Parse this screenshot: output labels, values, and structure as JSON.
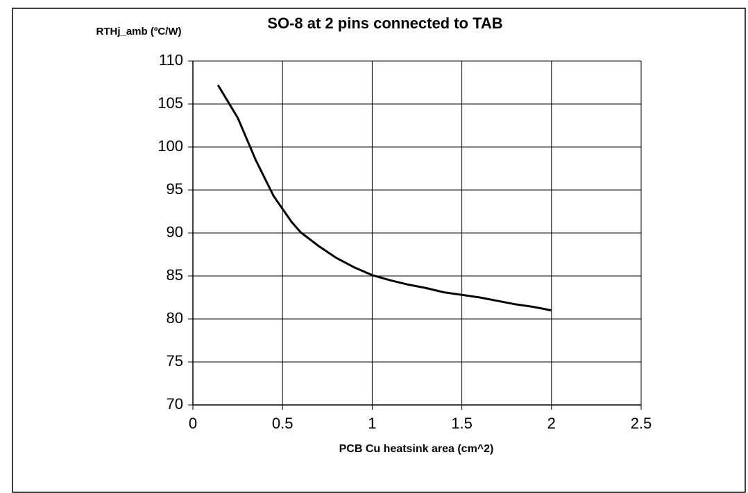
{
  "chart_data": {
    "type": "line",
    "title": "SO-8 at 2 pins connected to TAB",
    "y_label": "RTHj_amb (ºC/W)",
    "x_label": "PCB Cu heatsink area (cm^2)",
    "x": [
      0.14,
      0.25,
      0.35,
      0.45,
      0.55,
      0.6,
      0.7,
      0.8,
      0.9,
      1.0,
      1.1,
      1.2,
      1.3,
      1.4,
      1.5,
      1.6,
      1.7,
      1.8,
      1.9,
      2.0
    ],
    "series": [
      {
        "color": "#000000",
        "values": [
          107.2,
          103.4,
          98.5,
          94.3,
          91.3,
          90.1,
          88.5,
          87.1,
          86.0,
          85.1,
          84.5,
          84.0,
          83.6,
          83.1,
          82.8,
          82.5,
          82.1,
          81.7,
          81.4,
          81.0
        ]
      }
    ],
    "xlim": [
      0,
      2.5
    ],
    "ylim": [
      70,
      110
    ],
    "xticks": [
      0,
      0.5,
      1,
      1.5,
      2,
      2.5
    ],
    "yticks": [
      70,
      75,
      80,
      85,
      90,
      95,
      100,
      105,
      110
    ],
    "grid": true
  }
}
